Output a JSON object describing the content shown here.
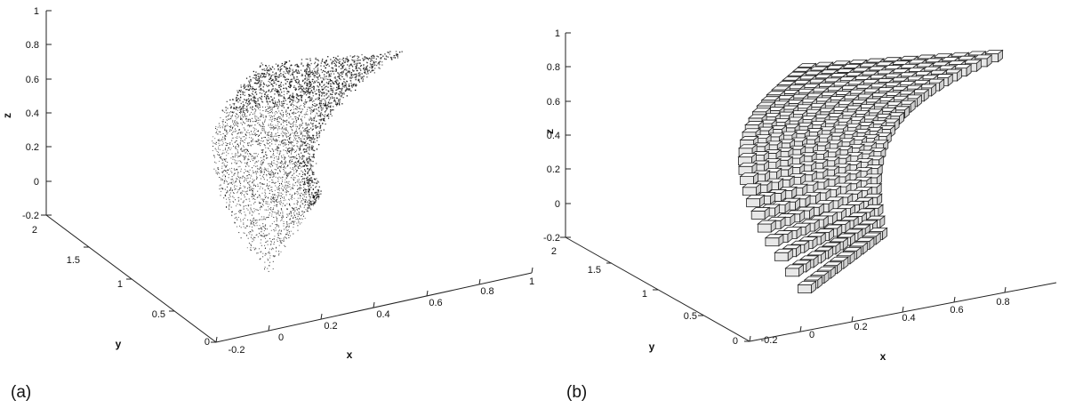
{
  "chart_data": [
    {
      "type": "scatter",
      "panel_label": "(a)",
      "xlabel": "x",
      "ylabel": "y",
      "zlabel": "z",
      "x_ticks": [
        "-0.2",
        "0",
        "0.2",
        "0.4",
        "0.6",
        "0.8",
        "1"
      ],
      "y_ticks": [
        "0",
        "0.5",
        "1",
        "1.5",
        "2"
      ],
      "z_ticks": [
        "-0.2",
        "0",
        "0.2",
        "0.4",
        "0.6",
        "0.8",
        "1"
      ],
      "xlim": [
        -0.2,
        1
      ],
      "ylim": [
        0,
        2
      ],
      "zlim": [
        -0.2,
        1
      ],
      "grid": false,
      "marker_color": "#111111"
    },
    {
      "type": "voxel",
      "panel_label": "(b)",
      "xlabel": "x",
      "ylabel": "y",
      "zlabel": "z",
      "x_ticks": [
        "-0.2",
        "0",
        "0.2",
        "0.4",
        "0.6",
        "0.8"
      ],
      "y_ticks": [
        "0",
        "0.5",
        "1",
        "1.5",
        "2"
      ],
      "z_ticks": [
        "-0.2",
        "0",
        "0.2",
        "0.4",
        "0.6",
        "0.8",
        "1"
      ],
      "xlim": [
        -0.2,
        1
      ],
      "ylim": [
        0,
        2
      ],
      "zlim": [
        -0.2,
        1
      ],
      "grid": false,
      "box_fill": "#e8e8e8",
      "box_edge": "#222222"
    }
  ]
}
